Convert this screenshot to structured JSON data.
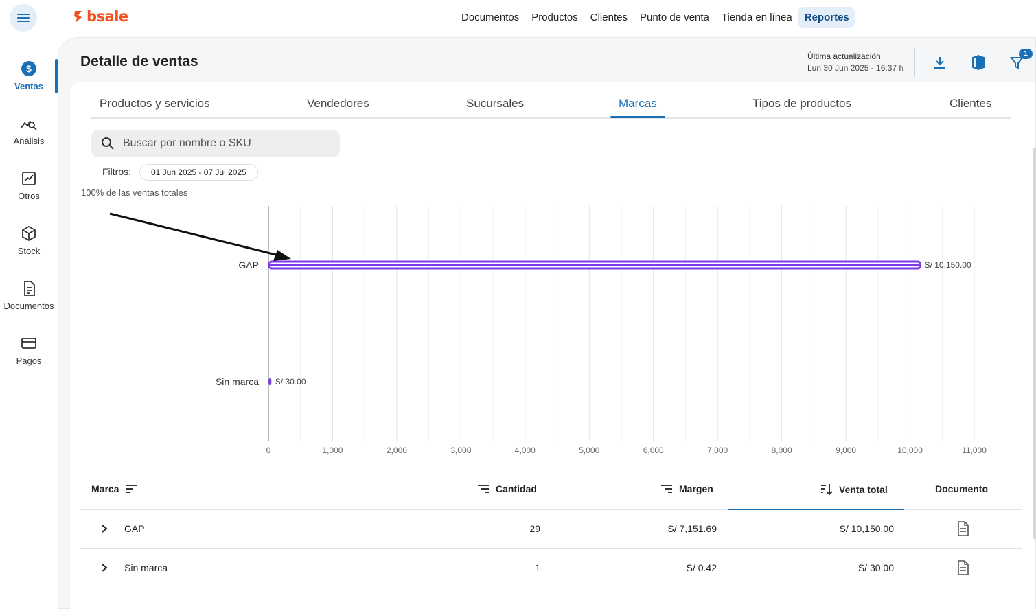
{
  "app": {
    "brand": "bsale",
    "brand_color": "#f4511e",
    "accent": "#1a6fb5"
  },
  "topnav": {
    "items": [
      {
        "label": "Documentos"
      },
      {
        "label": "Productos"
      },
      {
        "label": "Clientes"
      },
      {
        "label": "Punto de venta"
      },
      {
        "label": "Tienda en línea"
      },
      {
        "label": "Reportes",
        "active": true
      }
    ]
  },
  "sidebar": {
    "items": [
      {
        "label": "Ventas",
        "icon": "dollar-circle-icon",
        "active": true
      },
      {
        "label": "Análisis",
        "icon": "chart-search-icon"
      },
      {
        "label": "Otros",
        "icon": "trend-chart-icon"
      },
      {
        "label": "Stock",
        "icon": "box-icon"
      },
      {
        "label": "Documentos",
        "icon": "document-icon"
      },
      {
        "label": "Pagos",
        "icon": "card-icon"
      }
    ]
  },
  "header": {
    "title": "Detalle de ventas",
    "update_label": "Última actualización",
    "update_date": "Lun 30 Jun 2025 - 16:37 h",
    "filter_badge": "1"
  },
  "tabs": [
    {
      "label": "Productos y servicios"
    },
    {
      "label": "Vendedores"
    },
    {
      "label": "Sucursales"
    },
    {
      "label": "Marcas",
      "active": true
    },
    {
      "label": "Tipos de productos"
    },
    {
      "label": "Clientes"
    }
  ],
  "search": {
    "placeholder": "Buscar por nombre o SKU"
  },
  "filters": {
    "label": "Filtros:",
    "date_range": "01 Jun 2025 - 07 Jul 2025"
  },
  "chart_caption": "100% de las ventas totales",
  "chart_data": {
    "type": "bar",
    "orientation": "horizontal",
    "categories": [
      "GAP",
      "Sin marca"
    ],
    "values": [
      10150,
      30
    ],
    "data_labels": [
      "S/ 10,150.00",
      "S/ 30.00"
    ],
    "xlim": [
      0,
      11000
    ],
    "x_ticks": [
      0,
      1000,
      2000,
      3000,
      4000,
      5000,
      6000,
      7000,
      8000,
      9000,
      10000,
      11000
    ],
    "x_tick_labels": [
      "0",
      "1,000",
      "2,000",
      "3,000",
      "4,000",
      "5,000",
      "6,000",
      "7,000",
      "8,000",
      "9,000",
      "10,000",
      "11,000"
    ],
    "bar_color": "#7c3aed",
    "grid": true
  },
  "table": {
    "columns": {
      "marca": "Marca",
      "cantidad": "Cantidad",
      "margen": "Margen",
      "venta_total": "Venta total",
      "documento": "Documento"
    },
    "rows": [
      {
        "marca": "GAP",
        "cantidad": "29",
        "margen": "S/ 7,151.69",
        "venta_total": "S/ 10,150.00"
      },
      {
        "marca": "Sin marca",
        "cantidad": "1",
        "margen": "S/ 0.42",
        "venta_total": "S/ 30.00"
      }
    ]
  }
}
